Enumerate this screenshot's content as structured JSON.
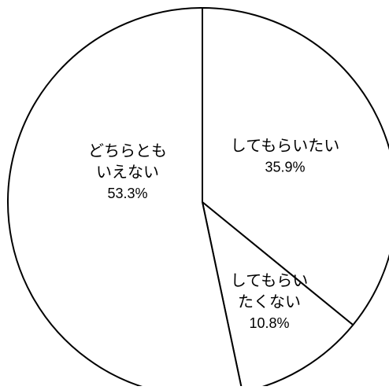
{
  "chart_data": {
    "type": "pie",
    "slices": [
      {
        "label_lines": [
          "してもらいたい"
        ],
        "value": 35.9,
        "value_label": "35.9%"
      },
      {
        "label_lines": [
          "してもらい",
          "たくない"
        ],
        "value": 10.8,
        "value_label": "10.8%"
      },
      {
        "label_lines": [
          "どちらとも",
          "いえない"
        ],
        "value": 53.3,
        "value_label": "53.3%"
      }
    ],
    "fill_color": "#ffffff",
    "stroke_color": "#000000",
    "start_angle": "12 o'clock",
    "direction": "clockwise",
    "legend": "none"
  }
}
